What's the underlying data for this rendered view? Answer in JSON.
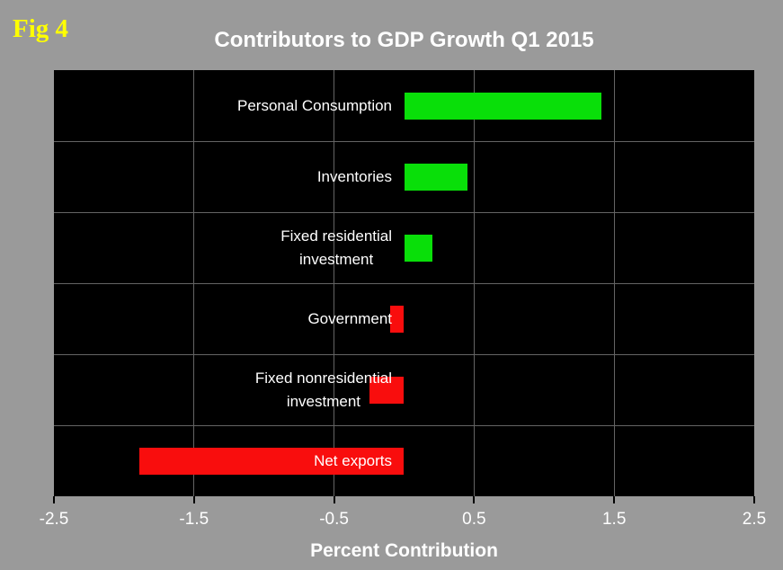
{
  "figure_label": "Fig 4",
  "colors": {
    "background": "#9a9a9a",
    "plot_background": "#000000",
    "grid": "#646464",
    "tick": "#000000",
    "text": "#ffffff",
    "figure_label": "#ffff00",
    "positive_bar": "#09df09",
    "negative_bar": "#f90d0d"
  },
  "chart_data": {
    "type": "bar",
    "orientation": "horizontal",
    "title": "Contributors to GDP Growth Q1 2015",
    "xlabel": "Percent Contribution",
    "categories": [
      "Personal Consumption",
      "Inventories",
      "Fixed residential investment",
      "Government",
      "Fixed nonresidential investment",
      "Net exports"
    ],
    "category_label_lines": [
      [
        "Personal Consumption"
      ],
      [
        "Inventories"
      ],
      [
        "Fixed residential",
        "investment"
      ],
      [
        "Government"
      ],
      [
        "Fixed nonresidential",
        "investment"
      ],
      [
        "Net exports"
      ]
    ],
    "values": [
      1.41,
      0.45,
      0.2,
      -0.1,
      -0.25,
      -1.89
    ],
    "xlim": [
      -2.5,
      2.5
    ],
    "xticks": [
      -2.5,
      -1.5,
      -0.5,
      0.5,
      1.5,
      2.5
    ],
    "xtick_labels": [
      "-2.5",
      "-1.5",
      "-0.5",
      "0.5",
      "1.5",
      "2.5"
    ],
    "grid": true,
    "legend": "none"
  }
}
